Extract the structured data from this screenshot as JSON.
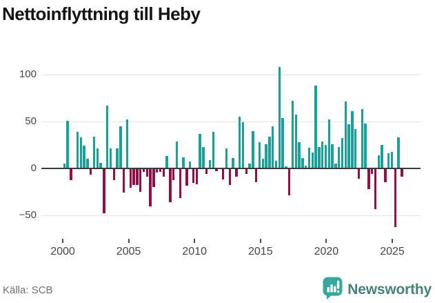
{
  "title": "Nettoinflyttning till Heby",
  "source": "Källa: SCB",
  "branding": {
    "name": "Newsworthy",
    "icon": "newsworthy-speech-bubble-chart-icon"
  },
  "colors": {
    "positive": "#18a09b",
    "negative": "#970c47",
    "axis": "#3a3a3a",
    "grid": "#e4e4e4",
    "tick_text": "#454545",
    "muted_text": "#6f6f6f",
    "brand_teal": "#35a79f",
    "brand_text": "#45807d",
    "title_text": "#141414"
  },
  "chart_data": {
    "type": "bar",
    "title": "Nettoinflyttning till Heby",
    "xlabel": "",
    "ylabel": "",
    "frequency": "quarterly",
    "start_quarter": "2000-Q1",
    "end_quarter": "2025-Q3",
    "grid": "horizontal",
    "legend": "none",
    "ylim": [
      -75,
      115
    ],
    "yticks": [
      100,
      50,
      0,
      -50
    ],
    "ytick_labels": [
      "100",
      "50",
      "0",
      "−50"
    ],
    "xticks": [
      2000,
      2005,
      2010,
      2015,
      2020,
      2025
    ],
    "xtick_labels": [
      "2000",
      "2005",
      "2010",
      "2015",
      "2020",
      "2025"
    ],
    "series": [
      {
        "name": "Nettoinflyttning",
        "values": [
          5,
          51,
          -12,
          0,
          39,
          33,
          24,
          10,
          -6,
          34,
          21,
          6,
          -47,
          67,
          21,
          -12,
          21,
          45,
          -25,
          52,
          -20,
          -17,
          -17,
          -24,
          -3,
          -8,
          -40,
          -19,
          -4,
          -3,
          -8,
          13,
          -35,
          -12,
          29,
          -31,
          12,
          -18,
          7,
          -15,
          -16,
          37,
          23,
          -5,
          9,
          39,
          -2,
          0,
          -11,
          21,
          -17,
          11,
          -8,
          55,
          49,
          -5,
          5,
          40,
          -14,
          28,
          10,
          26,
          34,
          45,
          8,
          108,
          54,
          2,
          -28,
          72,
          57,
          28,
          11,
          3,
          22,
          17,
          88,
          23,
          29,
          25,
          52,
          26,
          5,
          23,
          32,
          71,
          47,
          61,
          42,
          -10,
          63,
          48,
          -21,
          -5,
          -43,
          14,
          25,
          -14,
          16,
          18,
          -62,
          33,
          -8
        ]
      }
    ]
  }
}
